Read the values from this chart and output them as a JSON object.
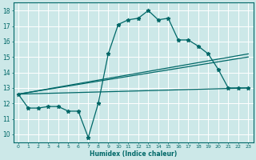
{
  "title": "",
  "xlabel": "Humidex (Indice chaleur)",
  "ylabel": "",
  "bg_color": "#cce8e8",
  "grid_color": "#ffffff",
  "line_color": "#006868",
  "xlim": [
    -0.5,
    23.5
  ],
  "ylim": [
    9.5,
    18.5
  ],
  "xticks": [
    0,
    1,
    2,
    3,
    4,
    5,
    6,
    7,
    8,
    9,
    10,
    11,
    12,
    13,
    14,
    15,
    16,
    17,
    18,
    19,
    20,
    21,
    22,
    23
  ],
  "yticks": [
    10,
    11,
    12,
    13,
    14,
    15,
    16,
    17,
    18
  ],
  "line1_x": [
    0,
    1,
    2,
    3,
    4,
    5,
    6,
    7,
    8,
    9,
    10,
    11,
    12,
    13,
    14,
    15,
    16,
    17,
    18,
    19,
    20,
    21,
    22,
    23
  ],
  "line1_y": [
    12.6,
    11.7,
    11.7,
    11.8,
    11.8,
    11.5,
    11.5,
    9.8,
    12.0,
    15.2,
    17.1,
    17.4,
    17.5,
    18.0,
    17.4,
    17.5,
    16.1,
    16.1,
    15.7,
    15.2,
    14.2,
    13.0,
    13.0,
    13.0
  ],
  "line2_x": [
    0,
    23
  ],
  "line2_y": [
    12.6,
    15.2
  ],
  "line3_x": [
    0,
    23
  ],
  "line3_y": [
    12.6,
    15.0
  ],
  "line4_x": [
    0,
    23
  ],
  "line4_y": [
    12.6,
    13.0
  ],
  "marker": "*",
  "markersize": 3.5,
  "linewidth": 0.9
}
